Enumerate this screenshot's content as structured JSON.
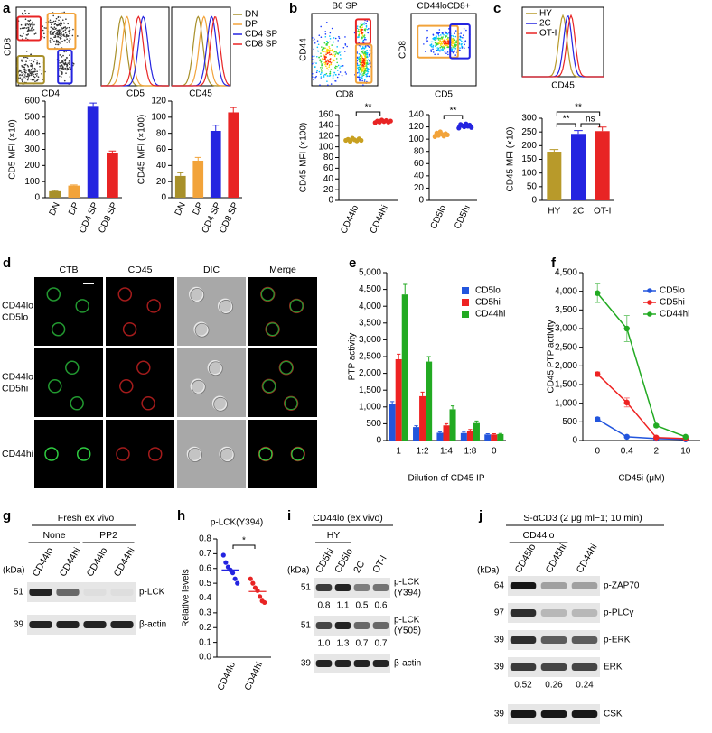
{
  "panel_labels": [
    "a",
    "b",
    "c",
    "d",
    "e",
    "f",
    "g",
    "h",
    "i",
    "j"
  ],
  "flow": {
    "a": {
      "ylabel": "CD8",
      "xlabels": [
        "CD4",
        "CD5",
        "CD45"
      ],
      "legend": [
        {
          "name": "DN",
          "color": "#a8902a"
        },
        {
          "name": "DP",
          "color": "#f2a33a"
        },
        {
          "name": "CD4 SP",
          "color": "#2424e0"
        },
        {
          "name": "CD8 SP",
          "color": "#e82424"
        }
      ]
    },
    "b": [
      {
        "title": "B6 SP",
        "xlabel": "CD8",
        "ylabel": "CD44"
      },
      {
        "title": "CD44loCD8+",
        "xlabel": "CD5",
        "ylabel": "CD8"
      }
    ],
    "c": {
      "xlabel": "CD45",
      "legend": [
        {
          "name": "HY",
          "color": "#b89a2a"
        },
        {
          "name": "2C",
          "color": "#2424e0"
        },
        {
          "name": "OT-I",
          "color": "#e82424"
        }
      ]
    }
  },
  "microscopy": {
    "columns": [
      "CTB",
      "CD45",
      "DIC",
      "Merge"
    ],
    "rows": [
      [
        "CD44lo",
        "CD5lo"
      ],
      [
        "CD44lo",
        "CD5hi"
      ],
      [
        "CD44hi"
      ]
    ]
  },
  "blots": {
    "g": {
      "header": "Fresh ex vivo",
      "groups": [
        "None",
        "PP2"
      ],
      "lanes": [
        "CD44lo",
        "CD44hi",
        "CD44lo",
        "CD44hi"
      ],
      "unit": "(kDa)",
      "rows": [
        {
          "kda": "51",
          "label": [
            "p-LCK"
          ]
        },
        {
          "kda": "39",
          "label": [
            "β-actin"
          ]
        }
      ]
    },
    "i": {
      "header": "CD44lo (ex vivo)",
      "groups": [
        "HY"
      ],
      "lanes": [
        "CD5hi",
        "CD5lo",
        "2C",
        "OT-I"
      ],
      "unit": "(kDa)",
      "rows": [
        {
          "kda": "51",
          "label": [
            "p-LCK",
            "(Y394)"
          ],
          "quant": [
            "0.8",
            "1.1",
            "0.5",
            "0.6"
          ]
        },
        {
          "kda": "51",
          "label": [
            "p-LCK",
            "(Y505)"
          ],
          "quant": [
            "1.0",
            "1.3",
            "0.7",
            "0.7"
          ]
        },
        {
          "kda": "39",
          "label": [
            "β-actin"
          ]
        }
      ]
    },
    "j": {
      "header": "S-αCD3 (2 μg ml−1; 10 min)",
      "groups": [
        "CD44lo"
      ],
      "lanes": [
        "CD45lo",
        "CD45hi",
        "CD44hi"
      ],
      "unit": "(kDa)",
      "rows": [
        {
          "kda": "64",
          "label": [
            "p-ZAP70"
          ]
        },
        {
          "kda": "97",
          "label": [
            "p-PLCγ"
          ]
        },
        {
          "kda": "39",
          "label": [
            "p-ERK"
          ]
        },
        {
          "kda": "39",
          "label": [
            "ERK"
          ],
          "quant": [
            "0.52",
            "0.26",
            "0.24"
          ]
        },
        {
          "kda": "39",
          "label": [
            "CSK"
          ]
        }
      ]
    }
  },
  "chart_data": [
    {
      "type": "bar",
      "ylabel": "CD5 MFI (×10)",
      "categories": [
        "DN",
        "DP",
        "CD4 SP",
        "CD8 SP"
      ],
      "values": [
        40,
        75,
        570,
        275
      ],
      "errors": [
        4,
        4,
        18,
        15
      ],
      "colors": [
        "#a8902a",
        "#f2a33a",
        "#2424e0",
        "#e82424"
      ],
      "ylim": [
        0,
        600
      ],
      "yticks": [
        0,
        100,
        200,
        300,
        400,
        500,
        600
      ]
    },
    {
      "type": "bar",
      "ylabel": "CD45 MFI (×100)",
      "categories": [
        "DN",
        "DP",
        "CD4 SP",
        "CD8 SP"
      ],
      "values": [
        27,
        46,
        83,
        106
      ],
      "errors": [
        4,
        4,
        7,
        6
      ],
      "colors": [
        "#a8902a",
        "#f2a33a",
        "#2424e0",
        "#e82424"
      ],
      "ylim": [
        0,
        120
      ],
      "yticks": [
        0,
        20,
        40,
        60,
        80,
        100,
        120
      ]
    },
    {
      "type": "dotplot",
      "ylabel": "CD45 MFI (×100)",
      "categories": [
        "CD44lo",
        "CD44hi"
      ],
      "points": [
        [
          112,
          114,
          110,
          116,
          113,
          111,
          115,
          112
        ],
        [
          145,
          148,
          146,
          150,
          147,
          149,
          146,
          148
        ]
      ],
      "colors": [
        "#c8a020",
        "#e82424"
      ],
      "ylim": [
        0,
        160
      ],
      "yticks": [
        0,
        20,
        40,
        60,
        80,
        100,
        120,
        140,
        160
      ],
      "annotations": [
        "**"
      ]
    },
    {
      "type": "dotplot",
      "categories": [
        "CD5lo",
        "CD5hi"
      ],
      "points": [
        [
          104,
          110,
          106,
          112,
          108,
          105,
          109,
          107
        ],
        [
          118,
          124,
          122,
          120,
          125,
          121,
          123,
          119
        ]
      ],
      "colors": [
        "#f2a33a",
        "#2424e0"
      ],
      "ylim": [
        0,
        140
      ],
      "yticks": [
        0,
        20,
        40,
        60,
        80,
        100,
        120,
        140
      ],
      "annotations": [
        "**"
      ]
    },
    {
      "type": "bar",
      "ylabel": "CD45 MFI (×10)",
      "categories": [
        "HY",
        "2C",
        "OT-I"
      ],
      "values": [
        178,
        243,
        253
      ],
      "errors": [
        8,
        12,
        15
      ],
      "colors": [
        "#b89a2a",
        "#2424e0",
        "#e82424"
      ],
      "ylim": [
        0,
        300
      ],
      "yticks": [
        0,
        50,
        100,
        150,
        200,
        250,
        300
      ],
      "annotations": [
        "**",
        "ns",
        "**"
      ]
    },
    {
      "type": "bar",
      "xlabel": "Dilution of CD45 IP",
      "ylabel": "PTP activity",
      "categories": [
        "1",
        "1:2",
        "1:4",
        "1:8",
        "0"
      ],
      "series": [
        {
          "name": "CD5lo",
          "color": "#2255dd",
          "values": [
            1100,
            400,
            230,
            220,
            180
          ],
          "errors": [
            60,
            40,
            30,
            30,
            20
          ]
        },
        {
          "name": "CD5hi",
          "color": "#ee2222",
          "values": [
            2420,
            1320,
            450,
            290,
            180
          ],
          "errors": [
            150,
            120,
            50,
            40,
            20
          ]
        },
        {
          "name": "CD44hi",
          "color": "#22aa22",
          "values": [
            4350,
            2350,
            930,
            520,
            190
          ],
          "errors": [
            300,
            150,
            100,
            60,
            20
          ]
        }
      ],
      "ylim": [
        0,
        5000
      ],
      "yticks": [
        0,
        500,
        {
          "value": 1000,
          "label": "1,000"
        },
        {
          "value": 1500,
          "label": "1,500"
        },
        {
          "value": 2000,
          "label": "2,000"
        },
        {
          "value": 2500,
          "label": "2,500"
        },
        {
          "value": 3000,
          "label": "3,000"
        },
        {
          "value": 3500,
          "label": "3,500"
        },
        {
          "value": 4000,
          "label": "4,000"
        },
        {
          "value": 4500,
          "label": "4,500"
        },
        {
          "value": 5000,
          "label": "5,000"
        }
      ]
    },
    {
      "type": "line",
      "xlabel": "CD45i (μM)",
      "ylabel": "CD45 PTP activity",
      "categories": [
        "0",
        "0.4",
        "2",
        "10"
      ],
      "series": [
        {
          "name": "CD5lo",
          "color": "#2255dd",
          "values": [
            570,
            100,
            50,
            30
          ],
          "errors": [
            50,
            20,
            10,
            10
          ]
        },
        {
          "name": "CD5hi",
          "color": "#ee2222",
          "values": [
            1780,
            1020,
            80,
            50
          ],
          "errors": [
            60,
            120,
            20,
            10
          ]
        },
        {
          "name": "CD44hi",
          "color": "#22aa22",
          "values": [
            3950,
            3000,
            400,
            100
          ],
          "errors": [
            250,
            350,
            40,
            20
          ]
        }
      ],
      "ylim": [
        0,
        4500
      ],
      "yticks": [
        0,
        500,
        {
          "value": 1000,
          "label": "1,000"
        },
        {
          "value": 1500,
          "label": "1,500"
        },
        {
          "value": 2000,
          "label": "2,000"
        },
        {
          "value": 2500,
          "label": "2,500"
        },
        {
          "value": 3000,
          "label": "3,000"
        },
        {
          "value": 3500,
          "label": "3,500"
        },
        {
          "value": 4000,
          "label": "4,000"
        },
        {
          "value": 4500,
          "label": "4,500"
        }
      ]
    },
    {
      "type": "dotplot",
      "title": "p-LCK(Y394)",
      "ylabel": "Relative levels",
      "categories": [
        "CD44lo",
        "CD44hi"
      ],
      "points": [
        [
          0.69,
          0.64,
          0.61,
          0.59,
          0.57,
          0.53,
          0.5
        ],
        [
          0.53,
          0.5,
          0.47,
          0.45,
          0.41,
          0.38,
          0.37
        ]
      ],
      "colors": [
        "#2424e0",
        "#e82424"
      ],
      "ylim": [
        0,
        0.8
      ],
      "yticks": [
        {
          "value": 0,
          "label": "0.0"
        },
        0.1,
        0.2,
        0.3,
        0.4,
        0.5,
        0.6,
        0.7,
        0.8
      ],
      "annotations": [
        "*"
      ]
    }
  ]
}
